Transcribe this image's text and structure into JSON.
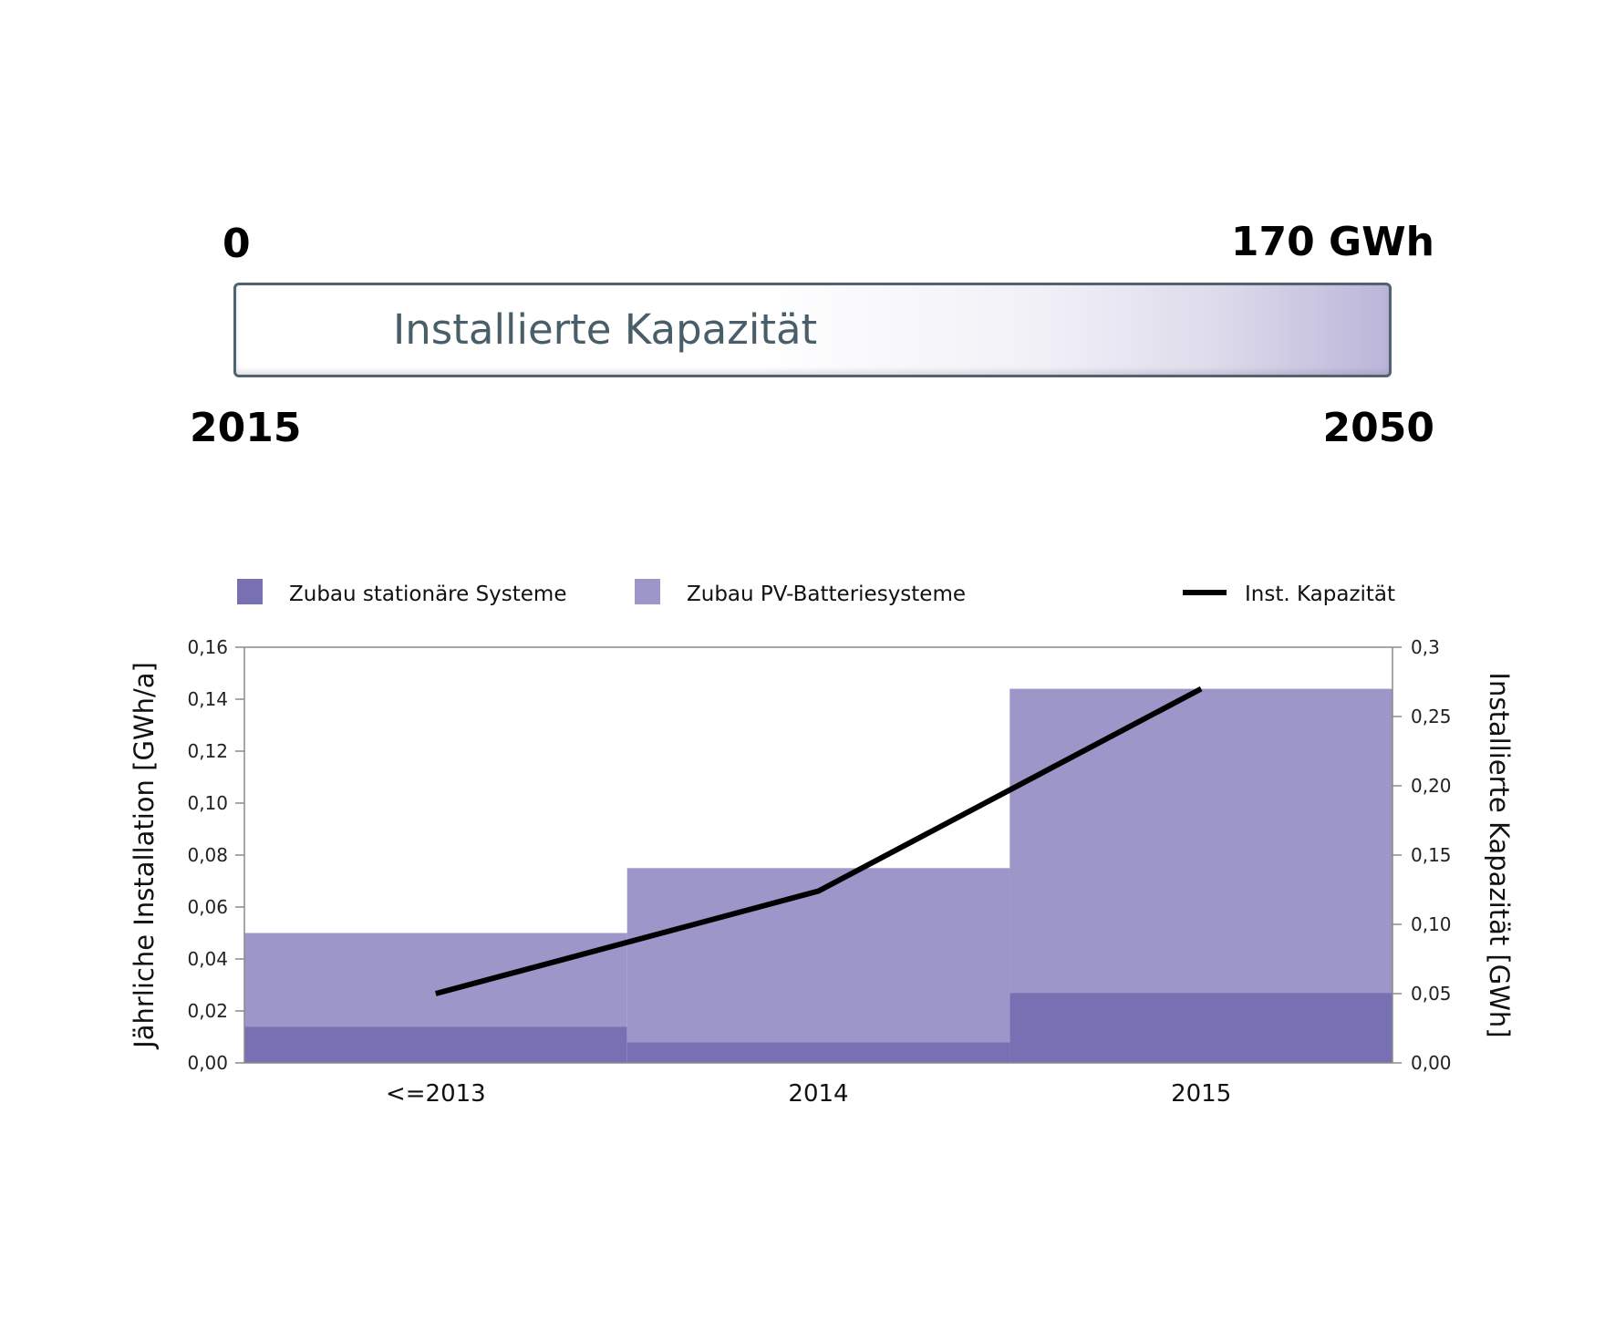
{
  "scale": {
    "min_label": "0",
    "max_label": "170 GWh",
    "bar_label": "Installierte Kapazität",
    "start_year": "2015",
    "end_year": "2050",
    "fill_fraction": 0.0016,
    "border_color": "#4f6470",
    "gradient_end_color": "#bcb5da"
  },
  "chart_data": {
    "type": "bar",
    "stacked": true,
    "categories": [
      "<=2013",
      "2014",
      "2015"
    ],
    "series": [
      {
        "name": "Zubau stationäre Systeme",
        "kind": "bar",
        "axis": "left",
        "color": "#7770b2",
        "values": [
          0.014,
          0.008,
          0.027
        ]
      },
      {
        "name": "Zubau PV-Batteriesysteme",
        "kind": "bar",
        "axis": "left",
        "color": "#9c96c9",
        "values": [
          0.036,
          0.067,
          0.117
        ]
      },
      {
        "name": "Inst. Kapazität",
        "kind": "line",
        "axis": "right",
        "color": "#000000",
        "values": [
          0.05,
          0.124,
          0.27
        ]
      }
    ],
    "ylabel": "Jährliche Installation [GWh/a]",
    "y2label": "Installierte Kapazität [GWh]",
    "ylim": [
      0,
      0.16
    ],
    "y2lim": [
      0,
      0.3
    ],
    "yticks": [
      "0,00",
      "0,02",
      "0,04",
      "0,06",
      "0,08",
      "0,10",
      "0,12",
      "0,14",
      "0,16"
    ],
    "y2ticks": [
      "0,00",
      "0,05",
      "0,10",
      "0,15",
      "0,20",
      "0,25",
      "0,3"
    ],
    "legend_position": "top",
    "grid": false
  }
}
